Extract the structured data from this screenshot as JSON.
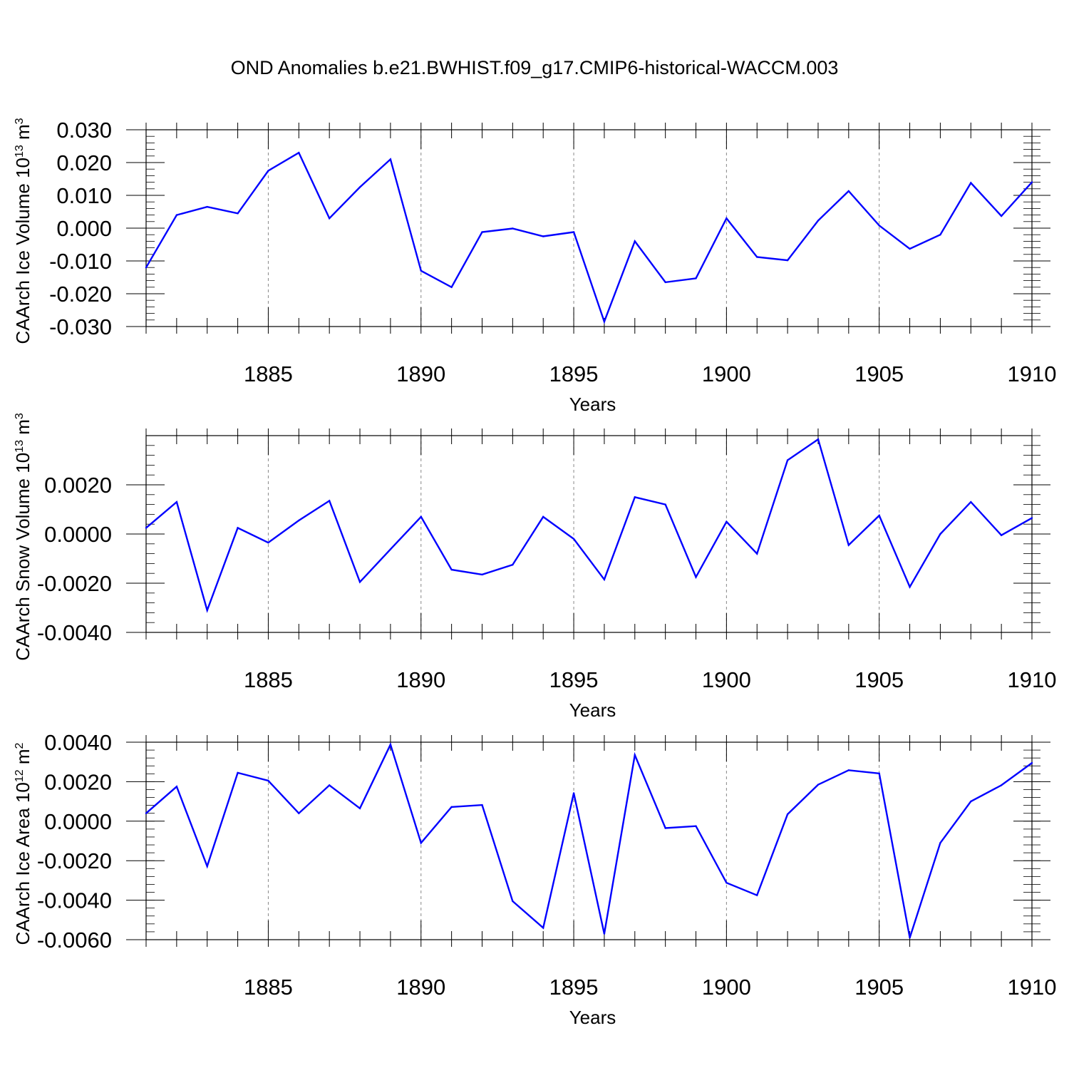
{
  "title": "OND Anomalies b.e21.BWHIST.f09_g17.CMIP6-historical-WACCM.003",
  "line_color": "#0000ff",
  "chart_data": [
    {
      "type": "line",
      "xlabel": "Years",
      "ylabel": {
        "text": "CAArch Ice Volume 10",
        "exp": "13",
        "unit": " m",
        "unit_exp": "3"
      },
      "xlim": [
        1881,
        1910
      ],
      "ylim": [
        -0.03,
        0.03
      ],
      "xticks": [
        1885,
        1890,
        1895,
        1900,
        1905,
        1910
      ],
      "yticks": [
        -0.03,
        -0.02,
        -0.01,
        0.0,
        0.01,
        0.02,
        0.03
      ],
      "ytick_labels": [
        "-0.030",
        "-0.020",
        "-0.010",
        "0.000",
        "0.010",
        "0.020",
        "0.030"
      ],
      "grid": "x-dashed",
      "x": [
        1881,
        1882,
        1883,
        1884,
        1885,
        1886,
        1887,
        1888,
        1889,
        1890,
        1891,
        1892,
        1893,
        1894,
        1895,
        1896,
        1897,
        1898,
        1899,
        1900,
        1901,
        1902,
        1903,
        1904,
        1905,
        1906,
        1907,
        1908,
        1909,
        1910
      ],
      "values": [
        -0.012,
        0.004,
        0.0065,
        0.0045,
        0.0175,
        0.023,
        0.003,
        0.0125,
        0.021,
        -0.013,
        -0.018,
        -0.0012,
        -0.0001,
        -0.0025,
        -0.0012,
        -0.0285,
        -0.004,
        -0.0165,
        -0.0153,
        0.003,
        -0.0088,
        -0.0098,
        0.0023,
        0.0113,
        0.0008,
        -0.0063,
        -0.002,
        0.0138,
        0.0037,
        0.014
      ]
    },
    {
      "type": "line",
      "xlabel": "Years",
      "ylabel": {
        "text": "CAArch Snow Volume 10",
        "exp": "13",
        "unit": " m",
        "unit_exp": "3"
      },
      "xlim": [
        1881,
        1910
      ],
      "ylim": [
        -0.004,
        0.004
      ],
      "xticks": [
        1885,
        1890,
        1895,
        1900,
        1905,
        1910
      ],
      "yticks": [
        -0.004,
        -0.002,
        0.0,
        0.002
      ],
      "ytick_labels": [
        "-0.0040",
        "-0.0020",
        "0.0000",
        "0.0020"
      ],
      "grid": "x-dashed",
      "x": [
        1881,
        1882,
        1883,
        1884,
        1885,
        1886,
        1887,
        1888,
        1889,
        1890,
        1891,
        1892,
        1893,
        1894,
        1895,
        1896,
        1897,
        1898,
        1899,
        1900,
        1901,
        1902,
        1903,
        1904,
        1905,
        1906,
        1907,
        1908,
        1909,
        1910
      ],
      "values": [
        0.00025,
        0.0013,
        -0.0031,
        0.00025,
        -0.00035,
        0.00055,
        0.00135,
        -0.00195,
        -0.00062,
        0.0007,
        -0.00145,
        -0.00165,
        -0.00125,
        0.0007,
        -0.0002,
        -0.00185,
        0.0015,
        0.0012,
        -0.00175,
        0.0005,
        -0.0008,
        0.003,
        0.00385,
        -0.00045,
        0.00075,
        -0.00215,
        0.0,
        0.0013,
        -5e-05,
        0.00065
      ]
    },
    {
      "type": "line",
      "xlabel": "Years",
      "ylabel": {
        "text": "CAArch Ice Area 10",
        "exp": "12",
        "unit": " m",
        "unit_exp": "2"
      },
      "xlim": [
        1881,
        1910
      ],
      "ylim": [
        -0.006,
        0.004
      ],
      "xticks": [
        1885,
        1890,
        1895,
        1900,
        1905,
        1910
      ],
      "yticks": [
        -0.006,
        -0.004,
        -0.002,
        0.0,
        0.002,
        0.004
      ],
      "ytick_labels": [
        "-0.0060",
        "-0.0040",
        "-0.0020",
        "0.0000",
        "0.0020",
        "0.0040"
      ],
      "grid": "x-dashed",
      "x": [
        1881,
        1882,
        1883,
        1884,
        1885,
        1886,
        1887,
        1888,
        1889,
        1890,
        1891,
        1892,
        1893,
        1894,
        1895,
        1896,
        1897,
        1898,
        1899,
        1900,
        1901,
        1902,
        1903,
        1904,
        1905,
        1906,
        1907,
        1908,
        1909,
        1910
      ],
      "values": [
        0.0004,
        0.00175,
        -0.00228,
        0.00245,
        0.00205,
        0.0004,
        0.00182,
        0.00065,
        0.00388,
        -0.0011,
        0.00072,
        0.00082,
        -0.00405,
        -0.0054,
        0.00142,
        -0.0057,
        0.00335,
        -0.00035,
        -0.00025,
        -0.00312,
        -0.00375,
        0.00035,
        0.00185,
        0.00258,
        0.00242,
        -0.0059,
        -0.0011,
        0.001,
        0.00182,
        0.00295
      ]
    }
  ]
}
